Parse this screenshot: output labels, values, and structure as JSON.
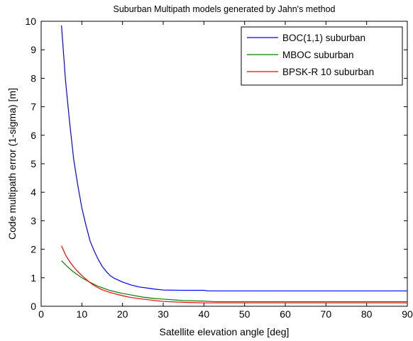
{
  "chart_data": {
    "type": "line",
    "title": "Suburban Multipath models generated by Jahn's method",
    "xlabel": "Satellite elevation angle [deg]",
    "ylabel": "Code multipath error (1-sigma) [m]",
    "xlim": [
      0,
      90
    ],
    "ylim": [
      0,
      10
    ],
    "xticks": [
      0,
      10,
      20,
      30,
      40,
      50,
      60,
      70,
      80,
      90
    ],
    "yticks": [
      0,
      1,
      2,
      3,
      4,
      5,
      6,
      7,
      8,
      9,
      10
    ],
    "grid": false,
    "legend_position": "top-right",
    "series": [
      {
        "name": "BOC(1,1) suburban",
        "color": "#0000ff",
        "x": [
          5,
          6,
          7,
          8,
          9,
          10,
          11,
          12,
          13,
          14,
          15,
          16,
          17,
          18,
          20,
          22,
          24,
          26,
          28,
          30,
          35,
          40,
          41,
          50,
          60,
          70,
          80,
          90
        ],
        "y": [
          9.85,
          7.9,
          6.45,
          5.15,
          4.25,
          3.45,
          2.85,
          2.3,
          1.95,
          1.65,
          1.4,
          1.22,
          1.07,
          0.98,
          0.85,
          0.75,
          0.68,
          0.64,
          0.6,
          0.57,
          0.56,
          0.56,
          0.54,
          0.54,
          0.54,
          0.54,
          0.54,
          0.54
        ]
      },
      {
        "name": "MBOC suburban",
        "color": "#008000",
        "x": [
          5,
          6,
          7,
          8,
          9,
          10,
          11,
          12,
          13,
          14,
          15,
          17,
          20,
          22,
          25,
          28,
          30,
          33,
          35,
          40,
          43,
          50,
          60,
          70,
          80,
          90
        ],
        "y": [
          1.6,
          1.45,
          1.32,
          1.2,
          1.1,
          1.0,
          0.92,
          0.84,
          0.77,
          0.7,
          0.65,
          0.55,
          0.45,
          0.4,
          0.32,
          0.27,
          0.25,
          0.22,
          0.2,
          0.18,
          0.16,
          0.16,
          0.16,
          0.16,
          0.16,
          0.16
        ]
      },
      {
        "name": "BPSK-R 10 suburban",
        "color": "#ff0000",
        "x": [
          5,
          6,
          7,
          8,
          9,
          10,
          11,
          12,
          13,
          14,
          15,
          17,
          20,
          22,
          25,
          28,
          30,
          35,
          40,
          50,
          60,
          70,
          80,
          90
        ],
        "y": [
          2.12,
          1.8,
          1.57,
          1.38,
          1.22,
          1.08,
          0.95,
          0.83,
          0.73,
          0.65,
          0.58,
          0.48,
          0.37,
          0.31,
          0.25,
          0.2,
          0.17,
          0.14,
          0.12,
          0.12,
          0.12,
          0.12,
          0.12,
          0.12
        ]
      }
    ]
  }
}
